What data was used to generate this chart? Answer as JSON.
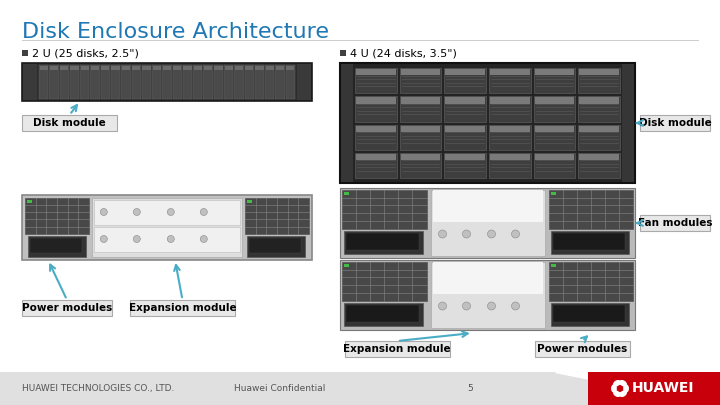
{
  "title": "Disk Enclosure Architecture",
  "title_color": "#1F78B4",
  "title_fontsize": 16,
  "bg_color": "#FFFFFF",
  "footer_left": "HUAWEI TECHNOLOGIES CO., LTD.",
  "footer_center": "Huawei Confidential",
  "footer_page": "5",
  "footer_fontsize": 6.5,
  "left_bullet": "2 U (25 disks, 2.5\")",
  "right_bullet": "4 U (24 disks, 3.5\")",
  "bullet_fontsize": 8,
  "label_disk_module_left": "Disk module",
  "label_power_modules_left": "Power modules",
  "label_expansion_left": "Expansion module",
  "label_disk_module_right": "Disk module",
  "label_fan_modules_right": "Fan modules",
  "label_expansion_right": "Expansion module",
  "label_power_modules_right": "Power modules",
  "arrow_color": "#4BACC6",
  "label_fontsize": 7,
  "label_fontsize_bold": 7.5
}
